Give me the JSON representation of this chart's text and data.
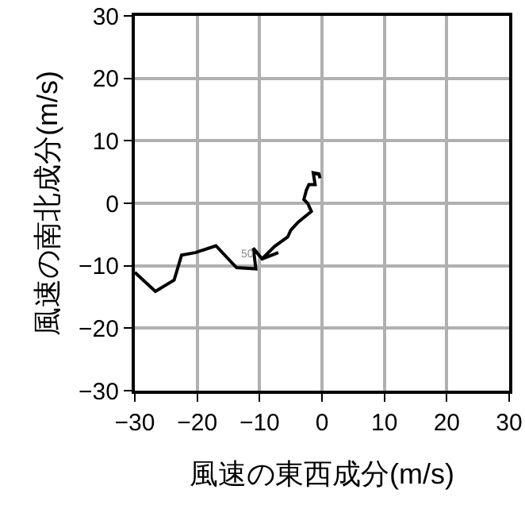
{
  "chart_data": {
    "type": "line",
    "xlabel": "風速の東西成分(m/s)",
    "ylabel": "風速の南北成分(m/s)",
    "x": [
      -30,
      -26.7,
      -23.7,
      -22.5,
      -20.3,
      -17,
      -13.7,
      -10.6,
      -11,
      -9.6,
      -7,
      -9.6,
      -7.6,
      -5.5,
      -5,
      -3.8,
      -1.7,
      -2.3,
      -2.9,
      -2.5,
      -2.1,
      -1.1,
      -1.4,
      -0.5,
      -0.3
    ],
    "series": [
      {
        "color": "#000000",
        "values": [
          -11.05,
          -14.1,
          -12.3,
          -8.3,
          -7.9,
          -6.8,
          -10.3,
          -10.5,
          -7.2,
          -8.9,
          -7.9,
          -8.9,
          -6.9,
          -5.4,
          -4.3,
          -3,
          -1.3,
          0,
          0.6,
          2.1,
          3,
          3,
          4.9,
          4.7,
          4
        ]
      }
    ],
    "annotations": [
      {
        "text": "50",
        "x": -12,
        "y": -8.3
      }
    ],
    "xlim": [
      -30,
      30
    ],
    "ylim": [
      -30,
      30
    ],
    "xticks": [
      -30,
      -20,
      -10,
      0,
      10,
      20,
      30
    ],
    "yticks": [
      -30,
      -20,
      -10,
      0,
      10,
      20,
      30
    ],
    "grid": true,
    "legend": false,
    "marker": "none",
    "line_style": "solid"
  }
}
